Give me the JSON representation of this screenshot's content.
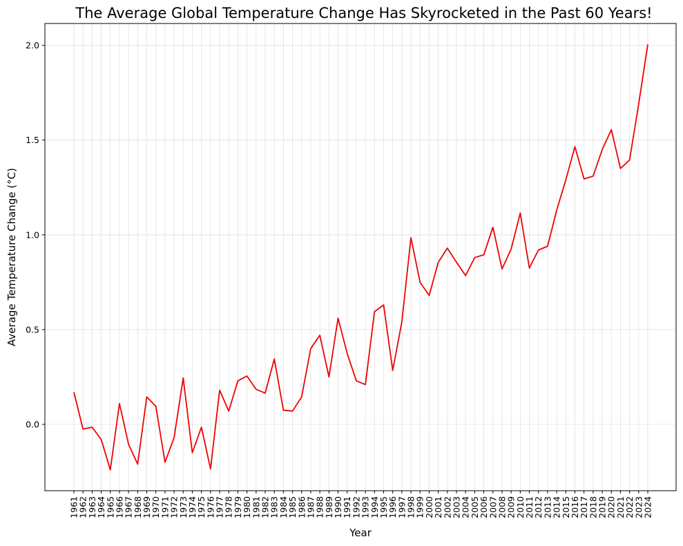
{
  "chart_data": {
    "type": "line",
    "title": "The Average Global Temperature Change Has Skyrocketed in the Past 60 Years!",
    "xlabel": "Year",
    "ylabel": "Average Temperature Change (°C)",
    "x": [
      "1961",
      "1962",
      "1963",
      "1964",
      "1965",
      "1966",
      "1967",
      "1968",
      "1969",
      "1970",
      "1971",
      "1972",
      "1973",
      "1974",
      "1975",
      "1976",
      "1977",
      "1978",
      "1979",
      "1980",
      "1981",
      "1982",
      "1983",
      "1984",
      "1985",
      "1986",
      "1987",
      "1988",
      "1989",
      "1990",
      "1991",
      "1992",
      "1993",
      "1994",
      "1995",
      "1996",
      "1997",
      "1998",
      "1999",
      "2000",
      "2001",
      "2002",
      "2003",
      "2004",
      "2005",
      "2006",
      "2007",
      "2008",
      "2009",
      "2010",
      "2011",
      "2012",
      "2013",
      "2014",
      "2015",
      "2016",
      "2017",
      "2018",
      "2019",
      "2020",
      "2021",
      "2022",
      "2023",
      "2024"
    ],
    "series": [
      {
        "color": "#ee0000",
        "values": [
          0.17,
          -0.025,
          -0.015,
          -0.08,
          -0.24,
          0.11,
          -0.105,
          -0.21,
          0.145,
          0.095,
          -0.2,
          -0.07,
          0.245,
          -0.15,
          -0.015,
          -0.235,
          0.18,
          0.07,
          0.23,
          0.255,
          0.185,
          0.165,
          0.345,
          0.075,
          0.07,
          0.145,
          0.4,
          0.47,
          0.25,
          0.56,
          0.375,
          0.23,
          0.21,
          0.595,
          0.63,
          0.285,
          0.54,
          0.985,
          0.75,
          0.68,
          0.855,
          0.93,
          0.855,
          0.785,
          0.88,
          0.895,
          1.04,
          0.82,
          0.925,
          1.115,
          0.825,
          0.92,
          0.94,
          1.13,
          1.29,
          1.465,
          1.295,
          1.31,
          1.45,
          1.555,
          1.35,
          1.395,
          1.69,
          2.005
        ]
      }
    ],
    "yticks": [
      0.0,
      0.5,
      1.0,
      1.5,
      2.0
    ],
    "ylim": [
      -0.35,
      2.12
    ],
    "grid": true
  }
}
